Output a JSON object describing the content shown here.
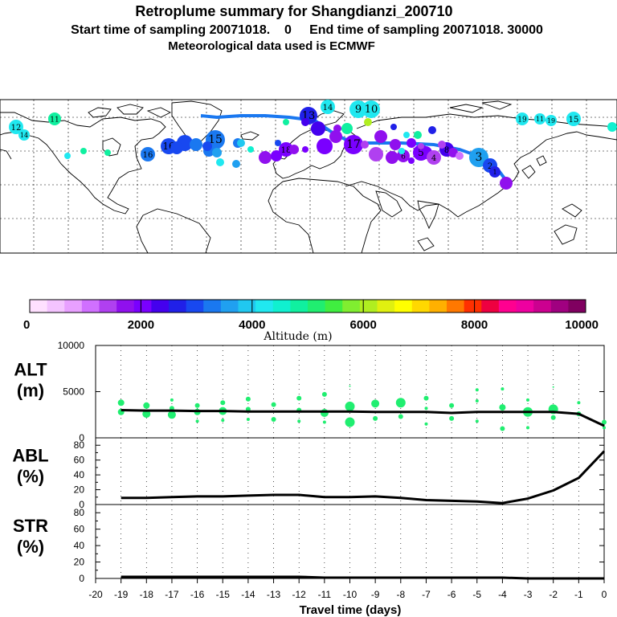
{
  "header": {
    "line1": "Retroplume summary for Shangdianzi_200710",
    "line2": "Start time of sampling 20071018.    0     End time of sampling 20071018. 30000",
    "line3": "Meteorological data used is ECMWF"
  },
  "map": {
    "marker_labels": [
      "12",
      "11",
      "14",
      "9",
      "10",
      "19",
      "11",
      "19",
      "15",
      "16",
      "16",
      "15",
      "8",
      "7",
      "6",
      "5",
      "4",
      "3",
      "2",
      "1",
      "13",
      "17",
      "18",
      "14"
    ],
    "colorbar": {
      "ticks": [
        "0",
        "2000",
        "4000",
        "6000",
        "8000",
        "10000"
      ],
      "label": "Altitude (m)",
      "colors": [
        "#ffe0ff",
        "#f4c4ff",
        "#e8a0ff",
        "#d070ff",
        "#b040f0",
        "#9010ee",
        "#7a00ff",
        "#4400ee",
        "#2020e8",
        "#1848f0",
        "#1a78f0",
        "#20a0f0",
        "#20c8f0",
        "#20e8f0",
        "#10f0d0",
        "#10f0a0",
        "#20ee70",
        "#40ee40",
        "#80ee30",
        "#b0ee20",
        "#e0f010",
        "#ffff00",
        "#ffd800",
        "#ffb000",
        "#ff7800",
        "#ff3000",
        "#ee0040",
        "#ff0090",
        "#ee00a0",
        "#cc0090",
        "#a00080",
        "#800060"
      ]
    }
  },
  "chart_data": [
    {
      "type": "scatter",
      "panel_label": "ALT\n(m)",
      "label_lines": [
        "ALT",
        "(m)"
      ],
      "ylim": [
        0,
        10000
      ],
      "yticks": [
        "10000",
        "5000",
        "0"
      ],
      "median_line": {
        "x": [
          -19,
          -18,
          -17,
          -16,
          -15,
          -14,
          -13,
          -12,
          -11,
          -10,
          -9,
          -8,
          -7,
          -6,
          -5,
          -4,
          -3,
          -2,
          -1,
          0
        ],
        "y": [
          3000,
          2950,
          2950,
          2900,
          2900,
          2850,
          2850,
          2850,
          2850,
          2850,
          2800,
          2800,
          2800,
          2700,
          2800,
          2800,
          2800,
          2800,
          2600,
          1300
        ]
      },
      "points": {
        "x": [
          -19,
          -19,
          -18,
          -18,
          -17,
          -17,
          -17,
          -16,
          -16,
          -16,
          -15,
          -15,
          -15,
          -14,
          -14,
          -14,
          -13,
          -13,
          -12,
          -12,
          -12,
          -11,
          -11,
          -11,
          -10,
          -10,
          -10,
          -9,
          -9,
          -8,
          -8,
          -7,
          -7,
          -7,
          -6,
          -6,
          -5,
          -5,
          -5,
          -4,
          -4,
          -4,
          -3,
          -3,
          -3,
          -2,
          -2,
          -2,
          -1,
          -1,
          0,
          0
        ],
        "y": [
          3800,
          2800,
          3500,
          2600,
          4100,
          3200,
          2500,
          3500,
          2800,
          1800,
          3800,
          2900,
          1900,
          4200,
          3100,
          2000,
          3600,
          2000,
          4300,
          3000,
          1800,
          4700,
          2700,
          1700,
          5600,
          3400,
          1700,
          3700,
          2100,
          3800,
          2300,
          4300,
          3200,
          1500,
          3500,
          2100,
          5200,
          4000,
          1800,
          5300,
          3300,
          1000,
          4100,
          2800,
          1100,
          5500,
          3100,
          2200,
          3800,
          2600,
          1700,
          1100
        ],
        "size": [
          4,
          4,
          4,
          5,
          2,
          3,
          5,
          3,
          4,
          2,
          3,
          5,
          2,
          3,
          3,
          2,
          3,
          3,
          3,
          3,
          2,
          3,
          5,
          2,
          1,
          6,
          6,
          5,
          3,
          6,
          3,
          3,
          2,
          2,
          3,
          3,
          2,
          2,
          2,
          2,
          4,
          3,
          2,
          6,
          2,
          1,
          6,
          3,
          2,
          3,
          3,
          2
        ]
      }
    },
    {
      "type": "line",
      "panel_label": "ABL\n(%)",
      "label_lines": [
        "ABL",
        "(%)"
      ],
      "ylim": [
        0,
        90
      ],
      "yticks": [
        "80",
        "60",
        "40",
        "20",
        "0"
      ],
      "x": [
        -19,
        -18,
        -17,
        -16,
        -15,
        -14,
        -13,
        -12,
        -11,
        -10,
        -9,
        -8,
        -7,
        -6,
        -5,
        -4,
        -3,
        -2,
        -1,
        0
      ],
      "y": [
        9,
        9,
        10,
        11,
        11,
        12,
        13,
        13,
        10,
        10,
        11,
        9,
        6,
        5,
        4,
        2,
        8,
        19,
        36,
        72
      ]
    },
    {
      "type": "line",
      "panel_label": "STR\n(%)",
      "label_lines": [
        "STR",
        "(%)"
      ],
      "ylim": [
        0,
        90
      ],
      "yticks": [
        "80",
        "60",
        "40",
        "20",
        "0"
      ],
      "x": [
        -19,
        -18,
        -17,
        -16,
        -15,
        -14,
        -13,
        -12,
        -11,
        -10,
        -9,
        -8,
        -7,
        -6,
        -5,
        -4,
        -3,
        -2,
        -1,
        0
      ],
      "y": [
        2,
        2,
        2,
        2,
        2,
        2,
        2,
        2,
        1,
        1,
        1,
        1,
        1,
        1,
        1,
        1,
        0,
        0,
        0,
        0
      ]
    }
  ],
  "xaxis": {
    "ticks": [
      "-20",
      "-19",
      "-18",
      "-17",
      "-16",
      "-15",
      "-14",
      "-13",
      "-12",
      "-11",
      "-10",
      "-9",
      "-8",
      "-7",
      "-6",
      "-5",
      "-4",
      "-3",
      "-2",
      "-1",
      "0"
    ],
    "label": "Travel time (days)"
  },
  "colors": {
    "point": "#20ee70",
    "line": "#000000"
  }
}
